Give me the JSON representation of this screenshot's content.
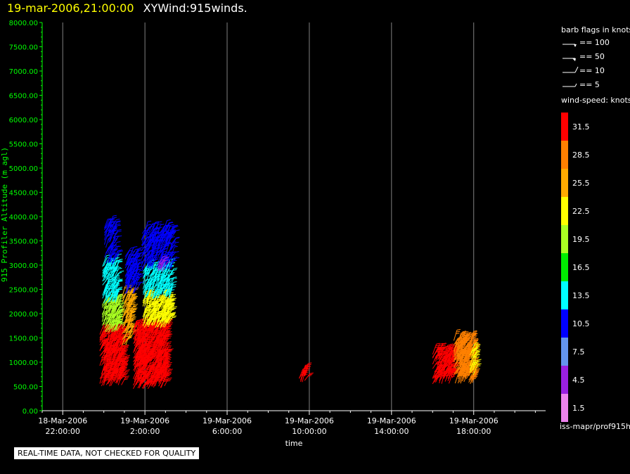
{
  "title": {
    "date": "19-mar-2006,21:00:00",
    "name": "XYWind:915winds."
  },
  "chart_data": {
    "type": "wind-barb",
    "ylabel": "915 Profiler Altitude (m agl)",
    "xlabel": "time",
    "ylim": [
      0,
      8000
    ],
    "yticks": [
      "0.00",
      "500.00",
      "1000.00",
      "1500.00",
      "2000.00",
      "2500.00",
      "3000.00",
      "3500.00",
      "4000.00",
      "4500.00",
      "5000.00",
      "5500.00",
      "6000.00",
      "6500.00",
      "7000.00",
      "7500.00",
      "8000.00"
    ],
    "xticks": [
      {
        "hour": 22,
        "date": "18-Mar-2006",
        "time": "22:00:00"
      },
      {
        "hour": 26,
        "date": "19-Mar-2006",
        "time": "2:00:00"
      },
      {
        "hour": 30,
        "date": "19-Mar-2006",
        "time": "6:00:00"
      },
      {
        "hour": 34,
        "date": "19-Mar-2006",
        "time": "10:00:00"
      },
      {
        "hour": 38,
        "date": "19-Mar-2006",
        "time": "14:00:00"
      },
      {
        "hour": 42,
        "date": "19-Mar-2006",
        "time": "18:00:00"
      }
    ],
    "xlim_hours": [
      21.0,
      45.5
    ],
    "grid": "vertical",
    "clusters": [
      {
        "t0": 23.8,
        "t1": 24.9,
        "hmin": 500,
        "hmax": 1600,
        "speed": 32
      },
      {
        "t0": 23.9,
        "t1": 24.7,
        "hmin": 1600,
        "hmax": 2200,
        "speed": 20
      },
      {
        "t0": 23.9,
        "t1": 24.6,
        "hmin": 2200,
        "hmax": 3000,
        "speed": 12
      },
      {
        "t0": 24.0,
        "t1": 24.5,
        "hmin": 3000,
        "hmax": 3800,
        "speed": 9
      },
      {
        "t0": 24.9,
        "t1": 25.3,
        "hmin": 1300,
        "hmax": 2400,
        "speed": 24
      },
      {
        "t0": 25.0,
        "t1": 25.6,
        "hmin": 2400,
        "hmax": 3200,
        "speed": 11
      },
      {
        "t0": 25.4,
        "t1": 27.0,
        "hmin": 450,
        "hmax": 1700,
        "speed": 32
      },
      {
        "t0": 25.9,
        "t1": 27.2,
        "hmin": 1700,
        "hmax": 2300,
        "speed": 21
      },
      {
        "t0": 25.9,
        "t1": 27.2,
        "hmin": 2300,
        "hmax": 2900,
        "speed": 14
      },
      {
        "t0": 25.8,
        "t1": 27.3,
        "hmin": 2900,
        "hmax": 3700,
        "speed": 9
      },
      {
        "t0": 26.6,
        "t1": 26.9,
        "hmin": 2850,
        "hmax": 3050,
        "speed": 4
      },
      {
        "t0": 33.5,
        "t1": 33.8,
        "hmin": 550,
        "hmax": 800,
        "speed": 31
      },
      {
        "t0": 40.0,
        "t1": 41.0,
        "hmin": 550,
        "hmax": 1200,
        "speed": 31
      },
      {
        "t0": 41.0,
        "t1": 42.0,
        "hmin": 550,
        "hmax": 1450,
        "speed": 27
      },
      {
        "t0": 41.8,
        "t1": 42.0,
        "hmin": 700,
        "hmax": 1200,
        "speed": 22
      }
    ]
  },
  "legend": {
    "barb_header": "barb flags in knots",
    "barb_keys": [
      "== 100",
      "== 50",
      "== 10",
      "== 5"
    ],
    "speed_header": "wind-speed: knots",
    "color_scale": [
      {
        "label": "31.5",
        "color": "#ff0000"
      },
      {
        "label": "28.5",
        "color": "#ff8000"
      },
      {
        "label": "25.5",
        "color": "#ffaa00"
      },
      {
        "label": "22.5",
        "color": "#ffff00"
      },
      {
        "label": "19.5",
        "color": "#aaff22"
      },
      {
        "label": "16.5",
        "color": "#00ee00"
      },
      {
        "label": "13.5",
        "color": "#00ffff"
      },
      {
        "label": "10.5",
        "color": "#0000ff"
      },
      {
        "label": "7.5",
        "color": "#6495ed"
      },
      {
        "label": "4.5",
        "color": "#9a20e0"
      },
      {
        "label": "1.5",
        "color": "#ee82ee"
      }
    ],
    "source": "iss-mapr/prof915h"
  },
  "disclaimer": "REAL-TIME DATA, NOT CHECKED FOR QUALITY",
  "colors": {
    "axis": "#00ff00",
    "grid": "#808080",
    "title_date": "#ffff00",
    "background": "#000000"
  }
}
